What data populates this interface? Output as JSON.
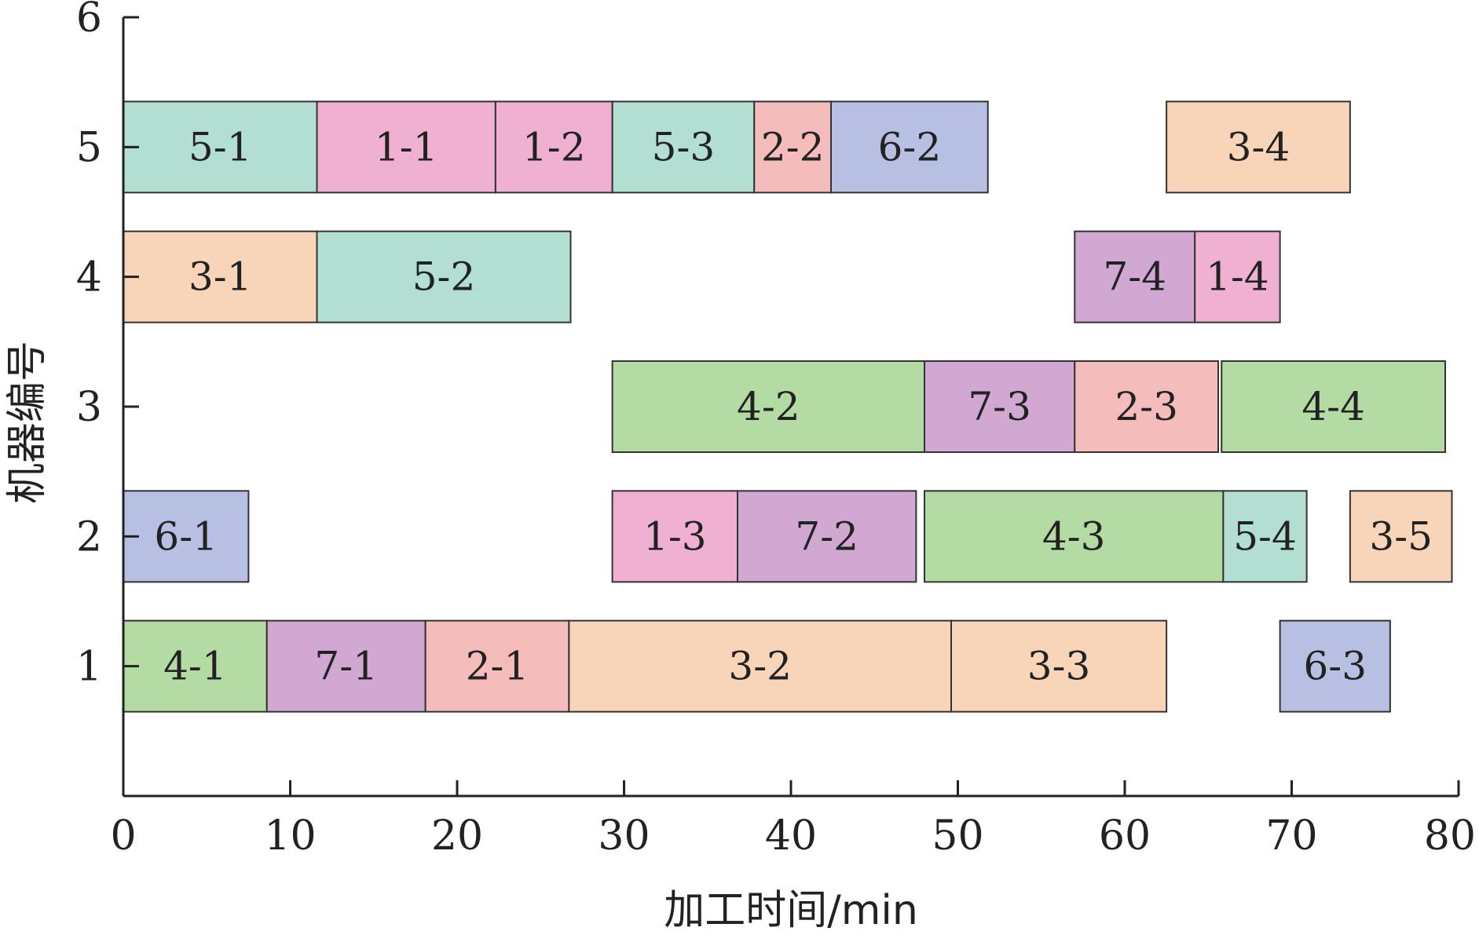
{
  "chart_data": {
    "type": "gantt",
    "xlabel": "加工时间/min",
    "ylabel": "机器编号",
    "xlim": [
      0,
      80
    ],
    "ylim": [
      0,
      6
    ],
    "xticks": [
      0,
      10,
      20,
      30,
      40,
      50,
      60,
      70,
      80
    ],
    "yticks": [
      1,
      2,
      3,
      4,
      5,
      6
    ],
    "grid": false,
    "job_colors": {
      "1": "#f0b0d2",
      "2": "#f5bcbc",
      "3": "#f8d5b8",
      "4": "#b3dba3",
      "5": "#b3dfd2",
      "6": "#b7c0e2",
      "7": "#d0a8d2"
    },
    "tasks": [
      {
        "label": "4-1",
        "job": "4",
        "machine": 1,
        "start": 0,
        "end": 8.6
      },
      {
        "label": "7-1",
        "job": "7",
        "machine": 1,
        "start": 8.6,
        "end": 18.1
      },
      {
        "label": "2-1",
        "job": "2",
        "machine": 1,
        "start": 18.1,
        "end": 26.7
      },
      {
        "label": "3-2",
        "job": "3",
        "machine": 1,
        "start": 26.7,
        "end": 49.6
      },
      {
        "label": "3-3",
        "job": "3",
        "machine": 1,
        "start": 49.6,
        "end": 62.5
      },
      {
        "label": "6-3",
        "job": "6",
        "machine": 1,
        "start": 69.3,
        "end": 75.9
      },
      {
        "label": "6-1",
        "job": "6",
        "machine": 2,
        "start": 0,
        "end": 7.5
      },
      {
        "label": "1-3",
        "job": "1",
        "machine": 2,
        "start": 29.3,
        "end": 36.8
      },
      {
        "label": "7-2",
        "job": "7",
        "machine": 2,
        "start": 36.8,
        "end": 47.5
      },
      {
        "label": "4-3",
        "job": "4",
        "machine": 2,
        "start": 48.0,
        "end": 65.9
      },
      {
        "label": "5-4",
        "job": "5",
        "machine": 2,
        "start": 65.9,
        "end": 70.9
      },
      {
        "label": "3-5",
        "job": "3",
        "machine": 2,
        "start": 73.5,
        "end": 79.6
      },
      {
        "label": "4-2",
        "job": "4",
        "machine": 3,
        "start": 29.3,
        "end": 48.0
      },
      {
        "label": "7-3",
        "job": "7",
        "machine": 3,
        "start": 48.0,
        "end": 57.0
      },
      {
        "label": "2-3",
        "job": "2",
        "machine": 3,
        "start": 57.0,
        "end": 65.6
      },
      {
        "label": "4-4",
        "job": "4",
        "machine": 3,
        "start": 65.8,
        "end": 79.2
      },
      {
        "label": "3-1",
        "job": "3",
        "machine": 4,
        "start": 0,
        "end": 11.6
      },
      {
        "label": "5-2",
        "job": "5",
        "machine": 4,
        "start": 11.6,
        "end": 26.8
      },
      {
        "label": "7-4",
        "job": "7",
        "machine": 4,
        "start": 57.0,
        "end": 64.2
      },
      {
        "label": "1-4",
        "job": "1",
        "machine": 4,
        "start": 64.2,
        "end": 69.3
      },
      {
        "label": "5-1",
        "job": "5",
        "machine": 5,
        "start": 0,
        "end": 11.6
      },
      {
        "label": "1-1",
        "job": "1",
        "machine": 5,
        "start": 11.6,
        "end": 22.3
      },
      {
        "label": "1-2",
        "job": "1",
        "machine": 5,
        "start": 22.3,
        "end": 29.3
      },
      {
        "label": "5-3",
        "job": "5",
        "machine": 5,
        "start": 29.3,
        "end": 37.8
      },
      {
        "label": "2-2",
        "job": "2",
        "machine": 5,
        "start": 37.8,
        "end": 42.4
      },
      {
        "label": "6-2",
        "job": "6",
        "machine": 5,
        "start": 42.4,
        "end": 51.8
      },
      {
        "label": "3-4",
        "job": "3",
        "machine": 5,
        "start": 62.5,
        "end": 73.5
      }
    ]
  }
}
